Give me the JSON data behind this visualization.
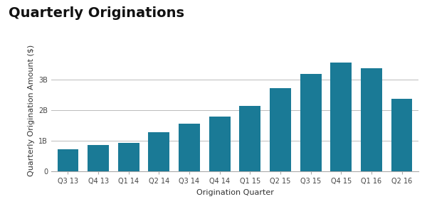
{
  "title": "Quarterly Originations",
  "xlabel": "Origination Quarter",
  "ylabel": "Quarterly Origination Amount ($)",
  "categories": [
    "Q3 13",
    "Q4 13",
    "Q1 14",
    "Q2 14",
    "Q3 14",
    "Q4 14",
    "Q1 15",
    "Q2 15",
    "Q3 15",
    "Q4 15",
    "Q1 16",
    "Q2 16"
  ],
  "values": [
    720000000.0,
    850000000.0,
    920000000.0,
    1280000000.0,
    1550000000.0,
    1780000000.0,
    2150000000.0,
    2720000000.0,
    3180000000.0,
    3550000000.0,
    3380000000.0,
    2380000000.0
  ],
  "bar_color": "#1a7a96",
  "background_color": "#ffffff",
  "ylim": [
    0,
    4000000000.0
  ],
  "yticks": [
    0,
    1000000000.0,
    2000000000.0,
    3000000000.0
  ],
  "ytick_labels": [
    "0",
    "1B",
    "2B",
    "3B"
  ],
  "title_fontsize": 14,
  "axis_label_fontsize": 8,
  "tick_fontsize": 7,
  "grid_color": "#bbbbbb",
  "bar_width": 0.7
}
